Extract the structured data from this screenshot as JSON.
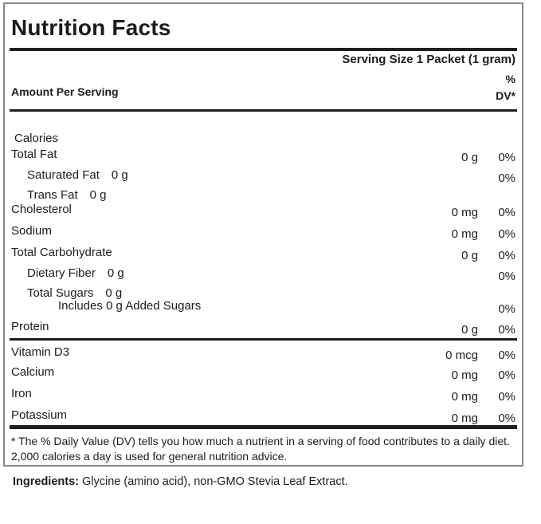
{
  "title": "Nutrition Facts",
  "serving_size": "Serving Size 1 Packet (1 gram)",
  "amount_per_serving": "Amount Per Serving",
  "dv_header": {
    "line1": "%",
    "line2": "DV*"
  },
  "rows": [
    {
      "name": "Calories",
      "amount": "",
      "dv": ""
    },
    {
      "name": "Total Fat",
      "amount": "0 g",
      "dv": "0%"
    },
    {
      "name": "Saturated Fat",
      "inline_amount": "0 g",
      "dv": "0%"
    },
    {
      "name": "Trans Fat",
      "inline_amount": "0 g",
      "dv": ""
    },
    {
      "name": "Cholesterol",
      "amount": "0 mg",
      "dv": "0%"
    },
    {
      "name": "Sodium",
      "amount": "0 mg",
      "dv": "0%"
    },
    {
      "name": "Total Carbohydrate",
      "amount": "0 g",
      "dv": "0%"
    },
    {
      "name": "Dietary Fiber",
      "inline_amount": "0 g",
      "dv": "0%"
    },
    {
      "name": "Total Sugars",
      "inline_amount": "0 g",
      "dv": ""
    },
    {
      "name": "Includes 0 g Added Sugars",
      "dv": "0%"
    },
    {
      "name": "Protein",
      "amount": "0 g",
      "dv": "0%"
    }
  ],
  "micronutrients": [
    {
      "name": "Vitamin D3",
      "amount": "0 mcg",
      "dv": "0%"
    },
    {
      "name": "Calcium",
      "amount": "0 mg",
      "dv": "0%"
    },
    {
      "name": "Iron",
      "amount": "0 mg",
      "dv": "0%"
    },
    {
      "name": "Potassium",
      "amount": "0 mg",
      "dv": "0%"
    }
  ],
  "footnote": "* The % Daily Value (DV) tells you how much a nutrient in a serving of food contributes to a daily diet. 2,000 calories a day is used for general nutrition advice.",
  "ingredients": {
    "label": "Ingredients:",
    "text": " Glycine (amino acid), non-GMO Stevia Leaf Extract."
  },
  "colors": {
    "text": "#1c1c1c",
    "bar": "#1f1f1f",
    "border": "#8a8a8a",
    "background": "#ffffff"
  }
}
